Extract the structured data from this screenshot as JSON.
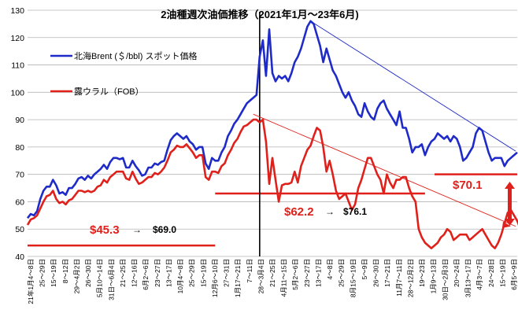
{
  "chart_data": {
    "type": "line",
    "title": "2油種週次油価推移（2021年1月～23年6月)",
    "xlabel": "",
    "ylabel": "",
    "ylim": [
      40,
      130
    ],
    "yticks": [
      40,
      50,
      60,
      70,
      80,
      90,
      100,
      110,
      120,
      130
    ],
    "grid": "horizontal",
    "legend_position": "top-left",
    "colors": {
      "brent": "#1f2bc8",
      "urals": "#e0201b",
      "ref_black": "#000000"
    },
    "xtick_labels": [
      "21年1月4～8日",
      "25～29日",
      "15～19日",
      "8～12日",
      "29～4月2日",
      "26～30日",
      "5月10～14日",
      "31日～6月4日",
      "21～25日",
      "12～16日",
      "6月2～6日",
      "23～27日",
      "13～17日",
      "10月4～8日",
      "25～29日",
      "15～19日",
      "12月6～10日",
      "27～31日",
      "1月17～21日",
      "7～11日",
      "28～3月4日",
      "21～25日",
      "4月11～15日",
      "5月2～6日",
      "23～27日",
      "13～17日",
      "4～8日",
      "25～29日",
      "8月15～19日",
      "5～9日",
      "26～30日",
      "17～21日",
      "11月7～11日",
      "28～12月2日",
      "19～23日",
      "1月9～13日",
      "30日～2月3日",
      "20～24日",
      "3月13～17日",
      "4月3～7日",
      "24～28日",
      "15～19日",
      "6月5～9日"
    ],
    "series": [
      {
        "name": "北海Brent  (＄/bbl) スポット価格",
        "values": [
          54,
          55.5,
          55,
          56.5,
          61,
          64,
          65.5,
          65.5,
          68,
          66,
          63,
          63.5,
          62.5,
          65,
          65,
          66.5,
          68.5,
          69,
          68,
          69.5,
          68.5,
          70,
          71,
          72,
          73.5,
          72,
          74.5,
          76,
          76,
          75.5,
          76,
          72.5,
          72.5,
          75,
          73,
          71.5,
          69.5,
          70,
          72.5,
          72.5,
          74,
          73.5,
          74.5,
          75,
          79,
          82.5,
          84,
          85,
          84,
          83,
          84,
          82,
          81,
          79,
          80,
          80,
          74,
          72,
          76,
          75,
          75,
          78,
          80,
          84,
          86,
          88.5,
          90,
          92,
          94,
          96,
          97,
          98,
          99,
          113,
          119,
          106,
          123,
          107,
          104,
          106,
          105,
          106,
          104,
          107,
          111,
          113,
          116,
          120,
          124,
          126,
          125,
          121,
          117,
          111,
          116,
          112,
          108,
          106,
          103,
          100,
          98,
          100,
          97,
          95,
          92,
          91,
          96,
          93,
          91,
          90,
          94,
          96,
          97,
          94,
          92,
          90,
          88,
          93,
          87,
          87,
          83,
          78,
          80,
          80,
          81,
          77,
          80,
          82,
          83,
          85,
          84,
          83,
          84,
          82,
          84,
          83,
          80,
          75,
          76,
          78,
          80,
          85,
          87,
          86,
          82,
          78,
          75,
          76,
          76,
          76,
          73,
          75,
          76,
          77,
          78
        ]
      },
      {
        "name": "露ウラル（FOB）",
        "values": [
          51.5,
          53.5,
          54,
          55,
          57.5,
          60,
          62,
          62.5,
          64,
          61,
          59.5,
          60,
          59,
          60.5,
          61,
          62.5,
          64,
          64,
          63.5,
          64,
          63.5,
          64,
          65.5,
          66,
          68,
          67,
          69,
          70,
          71,
          71,
          71,
          68.5,
          68,
          71,
          68.5,
          66.5,
          67,
          68,
          69,
          69,
          70.5,
          70,
          71,
          72.5,
          75,
          78,
          79,
          80.5,
          80,
          80,
          81,
          79.5,
          78,
          76,
          77,
          77,
          69,
          68,
          71,
          71,
          70.5,
          73,
          74,
          77,
          79,
          81.5,
          83,
          85.5,
          87.5,
          88,
          89,
          90,
          90,
          89,
          90,
          82,
          66.5,
          76,
          68,
          60,
          66,
          66.5,
          66.5,
          67,
          71,
          67,
          73,
          76,
          79,
          80.5,
          84,
          87,
          86,
          80,
          71,
          75,
          70,
          64,
          61,
          62,
          63,
          60,
          57,
          59,
          65,
          68,
          72,
          76,
          76,
          73,
          70,
          68,
          63,
          70,
          67,
          65,
          68,
          68,
          69,
          69,
          65,
          62,
          60,
          50,
          47,
          45,
          44,
          43,
          44,
          45,
          47,
          48,
          50,
          49,
          46,
          47,
          48,
          48,
          48,
          46,
          47,
          48,
          49,
          50,
          48,
          46,
          44,
          43,
          45,
          48,
          52,
          56,
          57,
          55,
          53,
          50,
          49,
          51,
          52,
          50,
          51,
          52,
          53,
          52,
          51,
          53,
          54,
          52
        ]
      }
    ],
    "reference_lines": [
      {
        "kind": "horizontal",
        "value": 44,
        "from_label": "21年1月4～8日",
        "to_label": "12月6～10日"
      },
      {
        "kind": "horizontal",
        "value": 63,
        "from_label": "12月6～10日",
        "to_label": "19～23日"
      },
      {
        "kind": "horizontal",
        "value": 70,
        "from_label": "1月9～13日",
        "to_label": "6月5～9日"
      },
      {
        "kind": "vertical",
        "at_label": "28～3月4日"
      }
    ],
    "trend_lines": [
      {
        "series": "brent",
        "from_value": 126,
        "to_value": 78.5
      },
      {
        "series": "urals",
        "from_value": 92,
        "to_value": 51
      }
    ],
    "annotations": {
      "a1_big": "$45.3",
      "a1_arrow": "→",
      "a1_small": "$69.0",
      "a2_big": "$62.2",
      "a2_arrow": "→",
      "a2_small": "$76.1",
      "a3_big": "$70.1"
    }
  }
}
